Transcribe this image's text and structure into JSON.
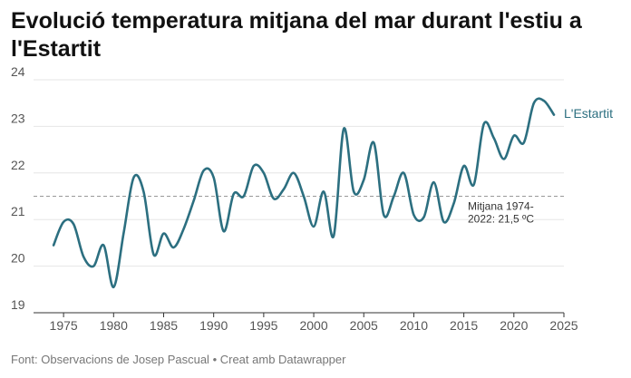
{
  "title": "Evolució temperatura mitjana del mar durant l'estiu a l'Estartit",
  "footer": {
    "source": "Font: Observacions de Josep Pascual",
    "separator": " • ",
    "credit": "Creat amb Datawrapper"
  },
  "colors": {
    "line": "#2c6f80",
    "grid": "#e6e6e6",
    "mean_line": "#999999",
    "label": "#2c6f80"
  },
  "chart_data": {
    "type": "line",
    "x": [
      1974,
      1975,
      1976,
      1977,
      1978,
      1979,
      1980,
      1981,
      1982,
      1983,
      1984,
      1985,
      1986,
      1987,
      1988,
      1989,
      1990,
      1991,
      1992,
      1993,
      1994,
      1995,
      1996,
      1997,
      1998,
      1999,
      2000,
      2001,
      2002,
      2003,
      2004,
      2005,
      2006,
      2007,
      2008,
      2009,
      2010,
      2011,
      2012,
      2013,
      2014,
      2015,
      2016,
      2017,
      2018,
      2019,
      2020,
      2021,
      2022,
      2023,
      2024
    ],
    "series": [
      {
        "name": "L'Estartit",
        "values": [
          20.45,
          20.95,
          20.9,
          20.2,
          20.0,
          20.45,
          19.55,
          20.7,
          21.9,
          21.6,
          20.25,
          20.7,
          20.4,
          20.8,
          21.4,
          22.05,
          21.9,
          20.75,
          21.55,
          21.5,
          22.15,
          22.0,
          21.45,
          21.65,
          22.0,
          21.5,
          20.85,
          21.6,
          20.65,
          22.95,
          21.6,
          21.85,
          22.65,
          21.1,
          21.5,
          22.0,
          21.1,
          21.05,
          21.8,
          20.95,
          21.35,
          22.15,
          21.75,
          23.05,
          22.75,
          22.3,
          22.8,
          22.65,
          23.5,
          23.55,
          23.25
        ]
      }
    ],
    "ylim": [
      19,
      24
    ],
    "yticks": [
      19,
      20,
      21,
      22,
      23,
      24
    ],
    "xlim": [
      1972,
      2025
    ],
    "xticks": [
      1975,
      1980,
      1985,
      1990,
      1995,
      2000,
      2005,
      2010,
      2015,
      2020,
      2025
    ],
    "grid": true,
    "reference_line": {
      "value": 21.5,
      "label_lines": [
        "Mitjana 1974-",
        "2022: 21,5 ºC"
      ]
    }
  }
}
